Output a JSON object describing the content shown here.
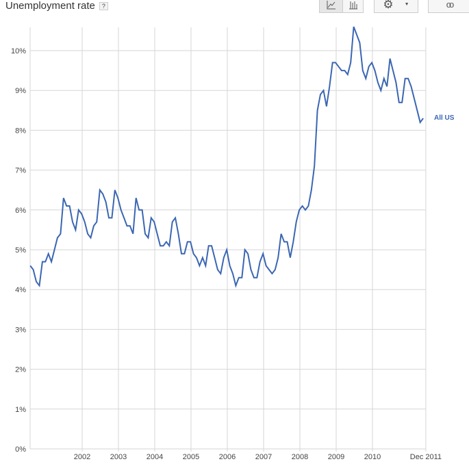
{
  "header": {
    "title": "Unemployment rate",
    "help": "?"
  },
  "toolbar": {
    "line_icon": "line-chart-icon",
    "bar_icon": "bar-chart-icon",
    "settings_icon": "gear-icon",
    "dropdown_icon": "caret-down-icon",
    "link_icon": "link-icon"
  },
  "chart_data": {
    "type": "line",
    "title": "Unemployment rate",
    "xlabel": "",
    "ylabel": "",
    "ylim": [
      0,
      10.6
    ],
    "yticks": [
      "0%",
      "1%",
      "2%",
      "3%",
      "4%",
      "5%",
      "6%",
      "7%",
      "8%",
      "9%",
      "10%"
    ],
    "xticks": [
      "2002",
      "2003",
      "2004",
      "2005",
      "2006",
      "2007",
      "2008",
      "2009",
      "2010",
      "Dec 2011"
    ],
    "xtick_values": [
      2002,
      2003,
      2004,
      2005,
      2006,
      2007,
      2008,
      2009,
      2010,
      2011.47
    ],
    "x_start": 2000.57,
    "x_step": 0.0833,
    "grid": true,
    "series": [
      {
        "name": "All US",
        "color": "#3a66b2",
        "values": [
          4.6,
          4.5,
          4.2,
          4.1,
          4.7,
          4.7,
          4.9,
          4.7,
          5.0,
          5.3,
          5.4,
          6.3,
          6.1,
          6.1,
          5.7,
          5.5,
          6.0,
          5.9,
          5.7,
          5.4,
          5.3,
          5.6,
          5.7,
          6.5,
          6.4,
          6.2,
          5.8,
          5.8,
          6.5,
          6.3,
          6.0,
          5.8,
          5.6,
          5.6,
          5.4,
          6.3,
          6.0,
          6.0,
          5.4,
          5.3,
          5.8,
          5.7,
          5.4,
          5.1,
          5.1,
          5.2,
          5.1,
          5.7,
          5.8,
          5.4,
          4.9,
          4.9,
          5.2,
          5.2,
          4.9,
          4.8,
          4.6,
          4.8,
          4.6,
          5.1,
          5.1,
          4.8,
          4.5,
          4.4,
          4.8,
          5.0,
          4.6,
          4.4,
          4.1,
          4.3,
          4.3,
          5.0,
          4.9,
          4.5,
          4.3,
          4.3,
          4.7,
          4.9,
          4.6,
          4.5,
          4.4,
          4.5,
          4.8,
          5.4,
          5.2,
          5.2,
          4.8,
          5.2,
          5.7,
          6.0,
          6.1,
          6.0,
          6.1,
          6.5,
          7.1,
          8.5,
          8.9,
          9.0,
          8.6,
          9.1,
          9.7,
          9.7,
          9.6,
          9.5,
          9.5,
          9.4,
          9.7,
          10.6,
          10.4,
          10.2,
          9.5,
          9.3,
          9.6,
          9.7,
          9.5,
          9.2,
          9.0,
          9.3,
          9.1,
          9.8,
          9.5,
          9.2,
          8.7,
          8.7,
          9.3,
          9.3,
          9.1,
          8.8,
          8.5,
          8.2,
          8.3
        ]
      }
    ]
  }
}
